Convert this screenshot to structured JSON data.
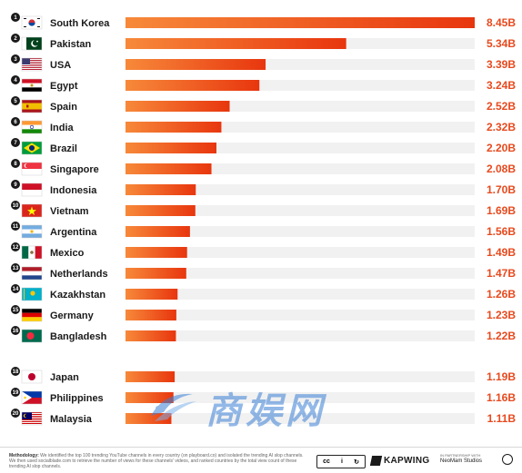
{
  "chart_data": {
    "type": "bar",
    "orientation": "horizontal",
    "categories": [
      "South Korea",
      "Pakistan",
      "USA",
      "Egypt",
      "Spain",
      "India",
      "Brazil",
      "Singapore",
      "Indonesia",
      "Vietnam",
      "Argentina",
      "Mexico",
      "Netherlands",
      "Kazakhstan",
      "Germany",
      "Bangladesh",
      "Japan",
      "Philippines",
      "Malaysia"
    ],
    "ranks": [
      "1",
      "2",
      "3",
      "4",
      "5",
      "6",
      "7",
      "8",
      "9",
      "10",
      "11",
      "12",
      "13",
      "14",
      "15",
      "16",
      "18",
      "19",
      "20"
    ],
    "values": [
      8.45,
      5.34,
      3.39,
      3.24,
      2.52,
      2.32,
      2.2,
      2.08,
      1.7,
      1.69,
      1.56,
      1.49,
      1.47,
      1.26,
      1.23,
      1.22,
      1.19,
      1.16,
      1.11
    ],
    "value_labels": [
      "8.45B",
      "5.34B",
      "3.39B",
      "3.24B",
      "2.52B",
      "2.32B",
      "2.20B",
      "2.08B",
      "1.70B",
      "1.69B",
      "1.56B",
      "1.49B",
      "1.47B",
      "1.26B",
      "1.23B",
      "1.22B",
      "1.19B",
      "1.16B",
      "1.11B"
    ],
    "flags": [
      "south-korea-flag-icon",
      "pakistan-flag-icon",
      "usa-flag-icon",
      "egypt-flag-icon",
      "spain-flag-icon",
      "india-flag-icon",
      "brazil-flag-icon",
      "singapore-flag-icon",
      "indonesia-flag-icon",
      "vietnam-flag-icon",
      "argentina-flag-icon",
      "mexico-flag-icon",
      "netherlands-flag-icon",
      "kazakhstan-flag-icon",
      "germany-flag-icon",
      "bangladesh-flag-icon",
      "japan-flag-icon",
      "philippines-flag-icon",
      "malaysia-flag-icon"
    ],
    "xlim": [
      0,
      8.45
    ],
    "grid": false,
    "colors": {
      "bar_start": "#f7893a",
      "bar_end": "#e8360e",
      "track": "#f1f1f1",
      "value_text": "#e8491d",
      "rank_badge": "#1a1a1a"
    }
  },
  "footer": {
    "methodology_label": "Methodology:",
    "methodology_text": "We identified the top 100 trending YouTube channels in every country (on playboard.co) and isolated the trending AI slop channels. We then used socialblade.com to retrieve the number of views for these channels' videos, and ranked countries by the total view count of these trending AI slop channels.",
    "cc_icons": [
      "cc-icon",
      "by-icon",
      "sa-icon"
    ],
    "cc_symbols": [
      "cc",
      "i",
      "↻"
    ],
    "brand": "KAPWING",
    "partner_label": "IN PARTNERSHIP WITH",
    "partner_name": "NeoMam Studios"
  },
  "watermark": {
    "text": "商娱网"
  }
}
